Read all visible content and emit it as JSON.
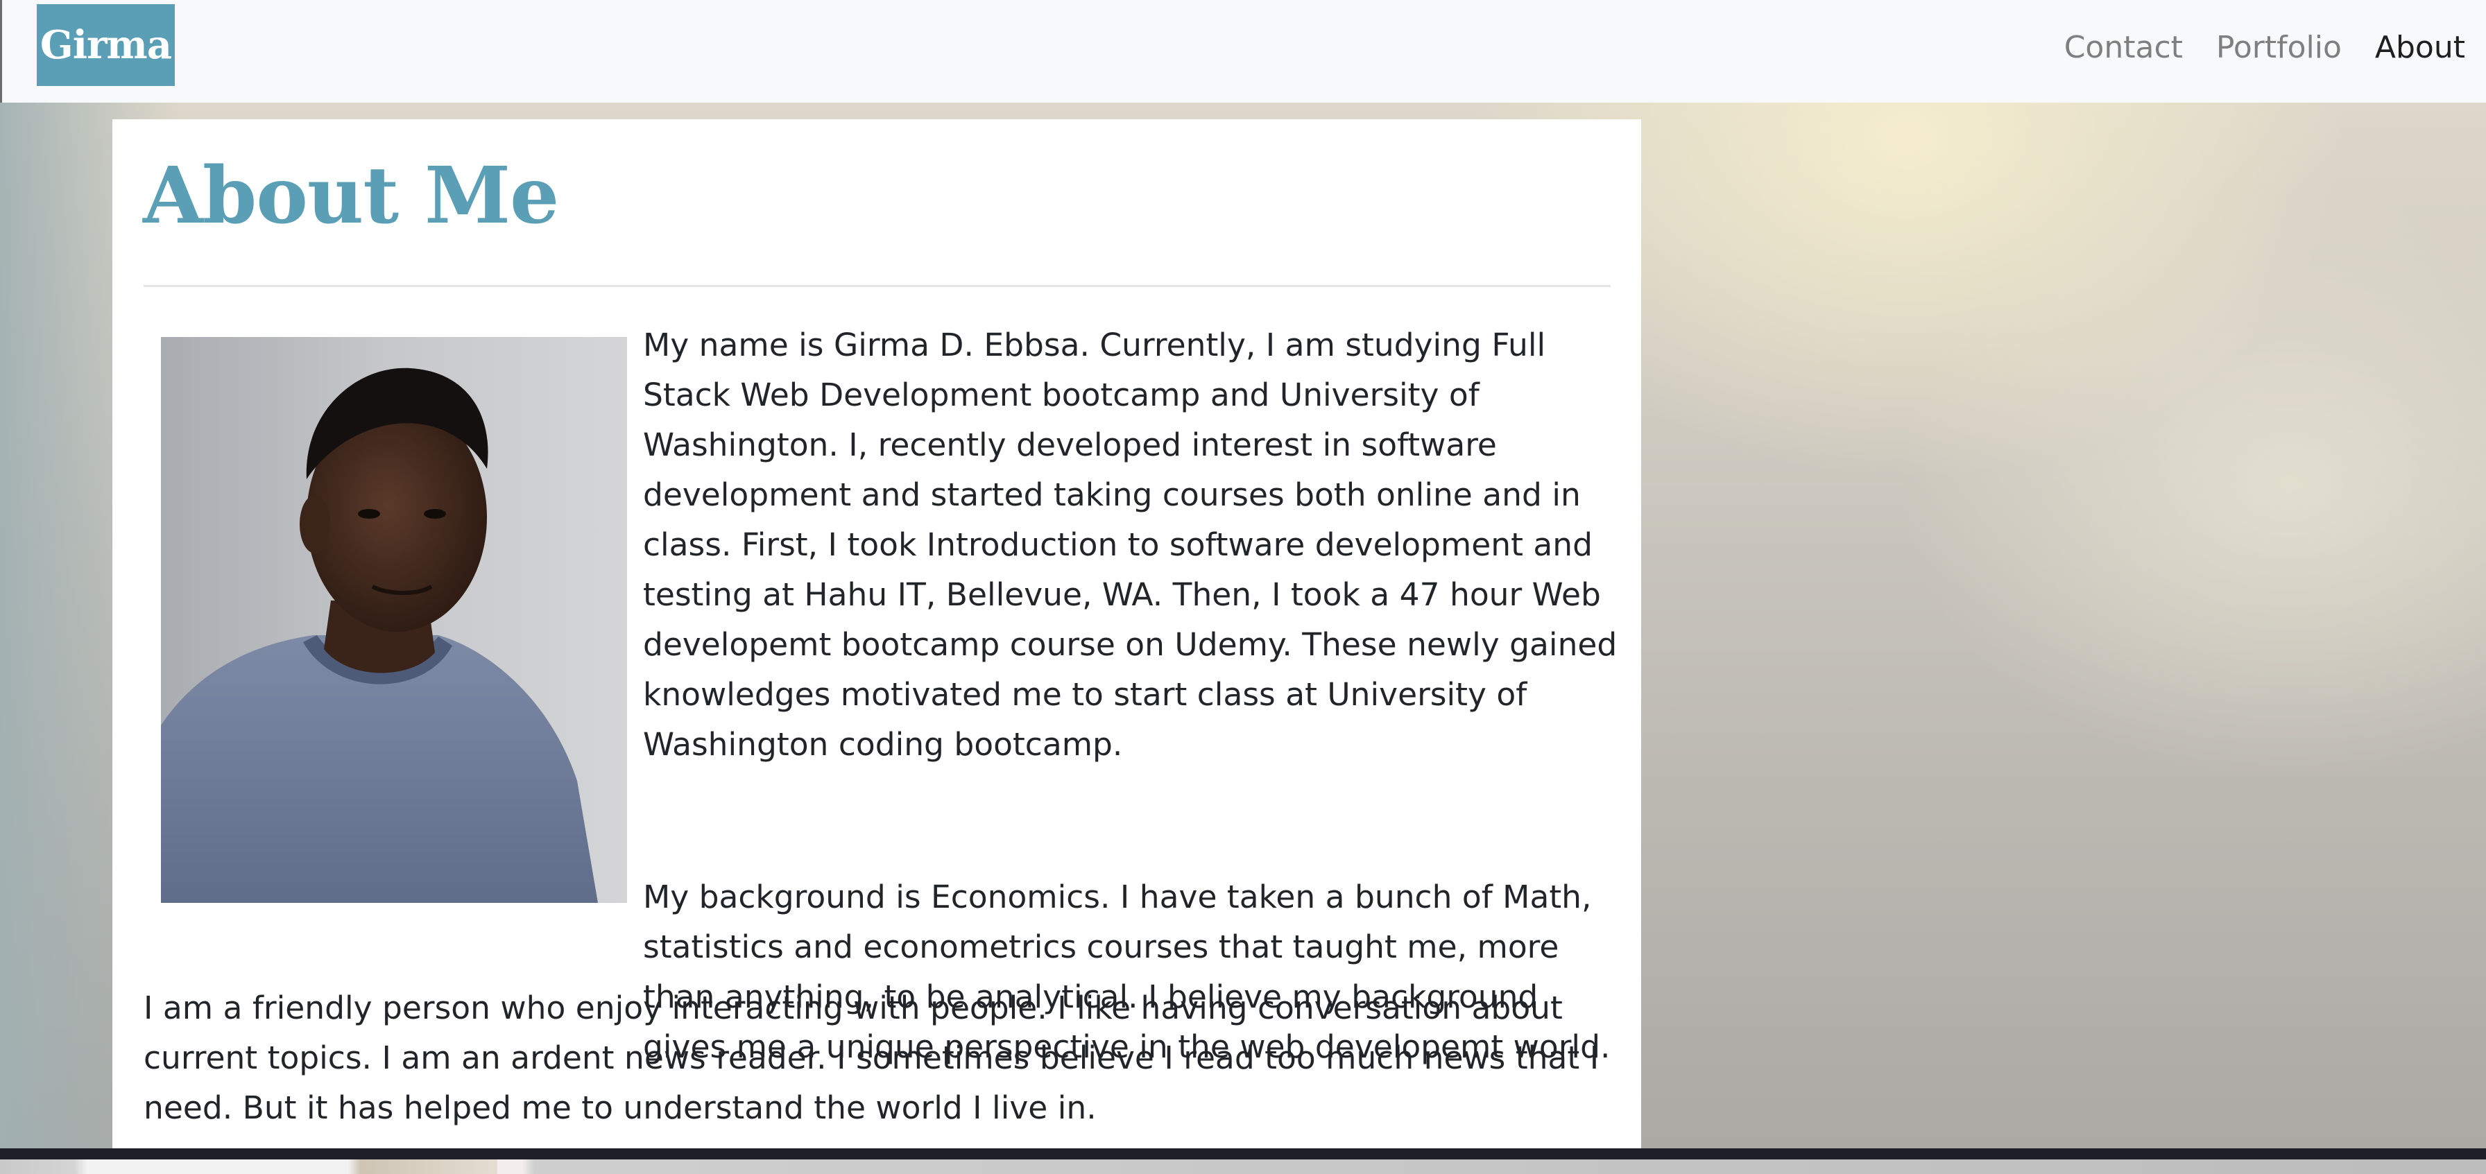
{
  "navbar": {
    "brand": "Girma",
    "links": [
      {
        "label": "Contact",
        "active": false
      },
      {
        "label": "Portfolio",
        "active": false
      },
      {
        "label": "About",
        "active": true
      }
    ]
  },
  "about": {
    "title": "About Me",
    "photo_alt": "portrait-photo",
    "paragraphs": [
      "My name is Girma D. Ebbsa. Currently, I am studying Full Stack Web Development bootcamp and University of Washington. I, recently developed interest in software development and started taking courses both online and in class. First, I took Introduction to software development and testing at Hahu IT, Bellevue, WA. Then, I took a 47 hour Web developemt bootcamp course on Udemy. These newly gained knowledges motivated me to start class at University of Washington coding bootcamp.",
      "My background is Economics. I have taken a bunch of Math, statistics and econometrics courses that taught me, more than anything, to be analytical. I believe my background gives me a unique perspective in the web developemt world.",
      "I am a friendly person who enjoy interacting with people. I like having conversation about current topics. I am an ardent news reader. I sometimes believe I read too much news that I need. But it has helped me to understand the world I live in."
    ]
  },
  "colors": {
    "accent": "#5a9fb5",
    "text": "#212529",
    "nav_inactive": "#7f7f7f",
    "nav_active": "#1f1f1f"
  }
}
